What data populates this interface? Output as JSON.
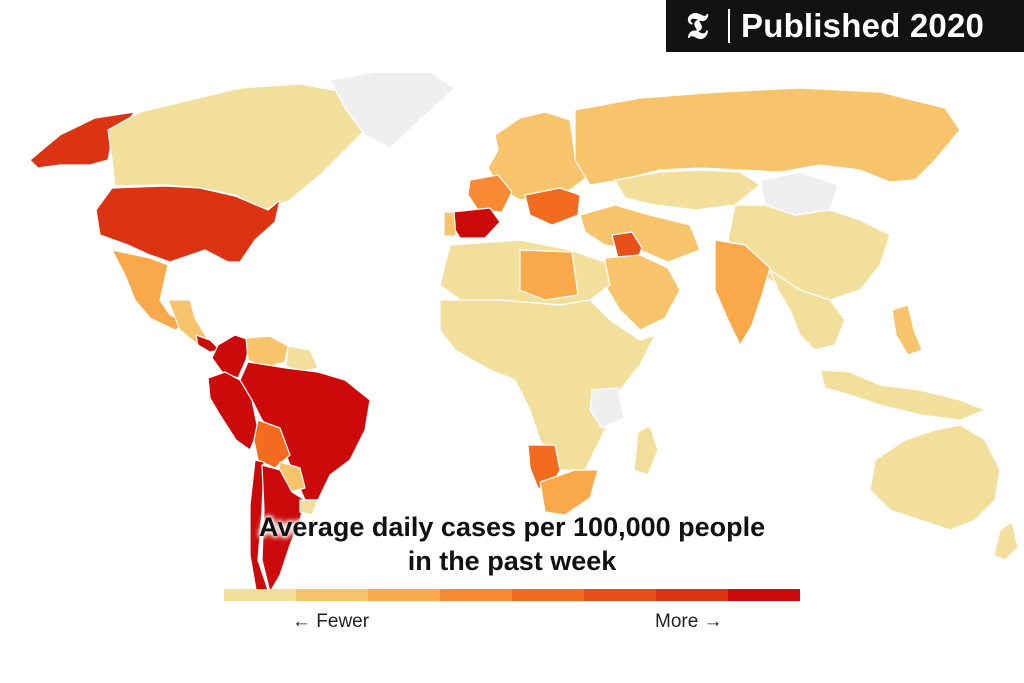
{
  "badge": {
    "logo": "𝕿",
    "text": "Published 2020"
  },
  "legend": {
    "title_line1": "Average daily cases per 100,000 people",
    "title_line2": "in the past week",
    "low_label": "← Fewer",
    "high_label": "More →",
    "bins": [
      "#f2df9c",
      "#f7c36b",
      "#f9a84a",
      "#f78a32",
      "#f26b1e",
      "#e8501a",
      "#dc3412",
      "#cc0a0a"
    ]
  },
  "colors": {
    "nodata": "#efefef",
    "border": "#ffffff"
  },
  "regions": [
    {
      "name": "alaska",
      "bin": 6
    },
    {
      "name": "canada",
      "bin": 0
    },
    {
      "name": "greenland",
      "bin": -1
    },
    {
      "name": "united-states",
      "bin": 6
    },
    {
      "name": "mexico",
      "bin": 2
    },
    {
      "name": "central-america",
      "bin": 1
    },
    {
      "name": "panama-costa-rica",
      "bin": 7
    },
    {
      "name": "colombia",
      "bin": 7
    },
    {
      "name": "venezuela",
      "bin": 1
    },
    {
      "name": "guianas",
      "bin": 0
    },
    {
      "name": "peru",
      "bin": 7
    },
    {
      "name": "brazil",
      "bin": 7
    },
    {
      "name": "bolivia",
      "bin": 4
    },
    {
      "name": "paraguay",
      "bin": 1
    },
    {
      "name": "chile",
      "bin": 7
    },
    {
      "name": "argentina",
      "bin": 7
    },
    {
      "name": "uruguay",
      "bin": 0
    },
    {
      "name": "europe-west",
      "bin": 1
    },
    {
      "name": "france",
      "bin": 3
    },
    {
      "name": "spain",
      "bin": 7
    },
    {
      "name": "portugal",
      "bin": 1
    },
    {
      "name": "balkans",
      "bin": 4
    },
    {
      "name": "russia",
      "bin": 1
    },
    {
      "name": "kazakhstan",
      "bin": 0
    },
    {
      "name": "mongolia",
      "bin": -1
    },
    {
      "name": "china",
      "bin": 0
    },
    {
      "name": "middle-east",
      "bin": 1
    },
    {
      "name": "iraq",
      "bin": 5
    },
    {
      "name": "saudi-arabia",
      "bin": 1
    },
    {
      "name": "india",
      "bin": 2
    },
    {
      "name": "southeast-asia",
      "bin": 0
    },
    {
      "name": "north-africa",
      "bin": 0
    },
    {
      "name": "libya",
      "bin": 2
    },
    {
      "name": "africa-central",
      "bin": 0
    },
    {
      "name": "tanzania",
      "bin": -1
    },
    {
      "name": "namibia",
      "bin": 4
    },
    {
      "name": "south-africa",
      "bin": 2
    },
    {
      "name": "madagascar",
      "bin": 0
    },
    {
      "name": "indonesia",
      "bin": 0
    },
    {
      "name": "philippines",
      "bin": 1
    },
    {
      "name": "australia",
      "bin": 0
    },
    {
      "name": "new-zealand",
      "bin": 0
    }
  ]
}
